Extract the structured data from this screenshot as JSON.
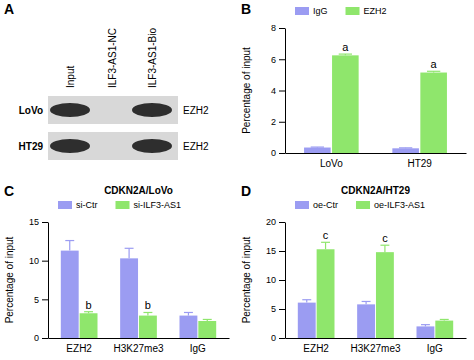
{
  "blot": {
    "panel": "A",
    "lanes": [
      "Input",
      "ILF3-AS1-NC",
      "ILF3-AS1-Bio"
    ],
    "rows": [
      {
        "cell": "LoVo",
        "protein": "EZH2",
        "bands": [
          true,
          false,
          true
        ]
      },
      {
        "cell": "HT29",
        "protein": "EZH2",
        "bands": [
          true,
          false,
          true
        ]
      }
    ]
  },
  "chart_data": [
    {
      "type": "bar",
      "panel": "B",
      "y_label": "Percentage of input",
      "categories": [
        "LoVo",
        "HT29"
      ],
      "series": [
        {
          "name": "IgG",
          "color": "#9b9cf2",
          "values": [
            0.35,
            0.3
          ],
          "errors": [
            0.03,
            0.03
          ],
          "annotations": [
            null,
            null
          ]
        },
        {
          "name": "EZH2",
          "color": "#8fe66c",
          "values": [
            6.25,
            5.15
          ],
          "errors": [
            0.08,
            0.08
          ],
          "annotations": [
            "a",
            "a"
          ]
        }
      ],
      "ylim": [
        0,
        8
      ],
      "yticks": [
        0,
        2,
        4,
        6,
        8
      ],
      "grid": false,
      "legend": "top"
    },
    {
      "type": "bar",
      "panel": "C",
      "title": "CDKN2A/LoVo",
      "y_label": "Percentage of input",
      "categories": [
        "EZH2",
        "H3K27me3",
        "IgG"
      ],
      "series": [
        {
          "name": "si-Ctr",
          "color": "#9b9cf2",
          "values": [
            11.3,
            10.3,
            2.9
          ],
          "errors": [
            1.3,
            1.3,
            0.4
          ],
          "annotations": [
            null,
            null,
            null
          ]
        },
        {
          "name": "si-ILF3-AS1",
          "color": "#8fe66c",
          "values": [
            3.2,
            2.9,
            2.2
          ],
          "errors": [
            0.2,
            0.4,
            0.2
          ],
          "annotations": [
            "b",
            "b",
            null
          ]
        }
      ],
      "ylim": [
        0,
        15
      ],
      "yticks": [
        0,
        5,
        10,
        15
      ],
      "grid": false,
      "legend": "top"
    },
    {
      "type": "bar",
      "panel": "D",
      "title": "CDKN2A/HT29",
      "y_label": "Percentage of input",
      "categories": [
        "EZH2",
        "H3K27me3",
        "IgG"
      ],
      "series": [
        {
          "name": "oe-Ctr",
          "color": "#9b9cf2",
          "values": [
            6.1,
            5.8,
            2.0
          ],
          "errors": [
            0.5,
            0.5,
            0.3
          ],
          "annotations": [
            null,
            null,
            null
          ]
        },
        {
          "name": "oe-ILF3-AS1",
          "color": "#8fe66c",
          "values": [
            15.3,
            14.8,
            3.0
          ],
          "errors": [
            1.2,
            1.2,
            0.2
          ],
          "annotations": [
            "c",
            "c",
            null
          ]
        }
      ],
      "ylim": [
        0,
        20
      ],
      "yticks": [
        0,
        5,
        10,
        15,
        20
      ],
      "grid": false,
      "legend": "top"
    }
  ]
}
